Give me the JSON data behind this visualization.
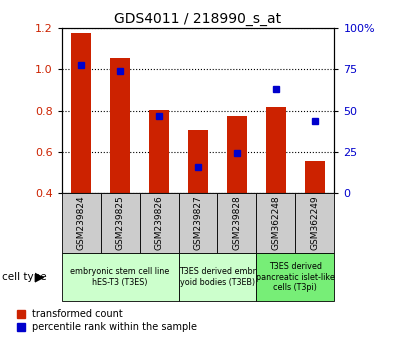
{
  "title": "GDS4011 / 218990_s_at",
  "samples": [
    "GSM239824",
    "GSM239825",
    "GSM239826",
    "GSM239827",
    "GSM239828",
    "GSM362248",
    "GSM362249"
  ],
  "transformed_count": [
    1.175,
    1.055,
    0.805,
    0.705,
    0.775,
    0.82,
    0.555
  ],
  "percentile_rank": [
    78,
    74,
    47,
    16,
    24,
    63,
    44
  ],
  "ylim_left": [
    0.4,
    1.2
  ],
  "ylim_right": [
    0,
    100
  ],
  "yticks_left": [
    0.4,
    0.6,
    0.8,
    1.0,
    1.2
  ],
  "yticks_right": [
    0,
    25,
    50,
    75,
    100
  ],
  "ytick_labels_right": [
    "0",
    "25",
    "50",
    "75",
    "100%"
  ],
  "bar_color": "#cc2200",
  "dot_color": "#0000cc",
  "cell_type_groups": [
    {
      "label": "embryonic stem cell line\nhES-T3 (T3ES)",
      "start": 0,
      "end": 3,
      "color": "#ccffcc"
    },
    {
      "label": "T3ES derived embr\nyoid bodies (T3EB)",
      "start": 3,
      "end": 5,
      "color": "#ccffcc"
    },
    {
      "label": "T3ES derived\npancreatic islet-like\ncells (T3pi)",
      "start": 5,
      "end": 7,
      "color": "#77ee77"
    }
  ],
  "legend_red": "transformed count",
  "legend_blue": "percentile rank within the sample",
  "cell_type_label": "cell type",
  "bar_width": 0.5,
  "sample_box_color": "#cccccc",
  "fig_bg": "#ffffff"
}
